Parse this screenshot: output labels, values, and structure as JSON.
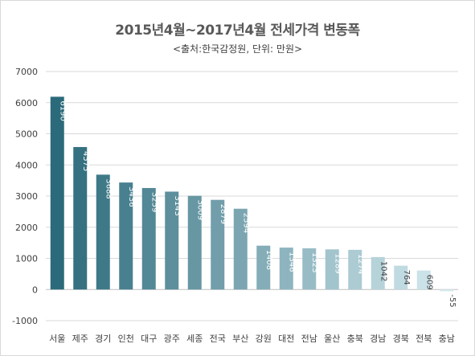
{
  "chart_data": {
    "type": "bar",
    "title": "2015년4월~2017년4월 전세가격 변동폭",
    "subtitle": "<출처:한국감정원, 단위: 만원>",
    "xlabel": "",
    "ylabel": "",
    "categories": [
      "서울",
      "제주",
      "경기",
      "인천",
      "대구",
      "광주",
      "세종",
      "전국",
      "부산",
      "강원",
      "대전",
      "전남",
      "울산",
      "충북",
      "경남",
      "경북",
      "전북",
      "충남"
    ],
    "values": [
      6190,
      4575,
      3688,
      3436,
      3259,
      3143,
      3009,
      2879,
      2594,
      1408,
      1346,
      1323,
      1289,
      1274,
      1042,
      764,
      609,
      -55
    ],
    "value_labels": [
      "6190",
      "4575",
      "3688",
      "3436",
      "3259",
      "3143",
      "3009",
      "2879",
      "2594",
      "1408",
      "1346",
      "1323",
      "1289",
      "1274",
      "1042",
      "764",
      "609",
      "-55"
    ],
    "ylim": [
      -1000,
      7000
    ],
    "yticks": [
      -1000,
      0,
      1000,
      2000,
      3000,
      4000,
      5000,
      6000,
      7000
    ],
    "ytick_labels": [
      "-1000",
      "0",
      "1000",
      "2000",
      "3000",
      "4000",
      "5000",
      "6000",
      "7000"
    ],
    "grid": true,
    "legend": "none",
    "colors": {
      "bar_start": "#2b6a7a",
      "bar_end": "#d4e9ef",
      "value_label_light": "#ffffff",
      "value_label_dark": "#404040",
      "grid": "#d9d9d9",
      "zero_line": "#bfbfbf"
    }
  }
}
